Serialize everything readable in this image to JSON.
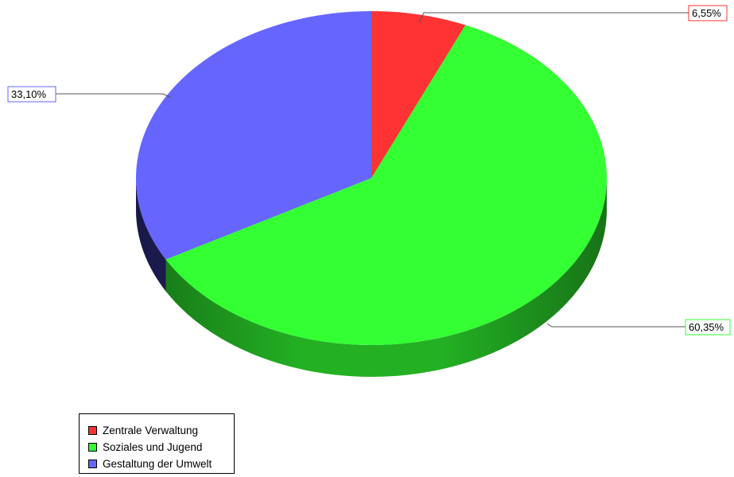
{
  "chart_data": {
    "type": "pie",
    "style": "3d",
    "categories": [
      "Zentrale Verwaltung",
      "Soziales und Jugend",
      "Gestaltung der Umwelt"
    ],
    "values": [
      6.55,
      60.35,
      33.1
    ],
    "labels": [
      "6,55%",
      "60,35%",
      "33,10%"
    ],
    "colors": [
      "#ff3333",
      "#33ff33",
      "#6666ff"
    ],
    "side_colors": [
      "#b32020",
      "#23b023",
      "#26266e"
    ],
    "legend": "bottom-left",
    "start_angle_deg": 90,
    "direction": "clockwise"
  }
}
